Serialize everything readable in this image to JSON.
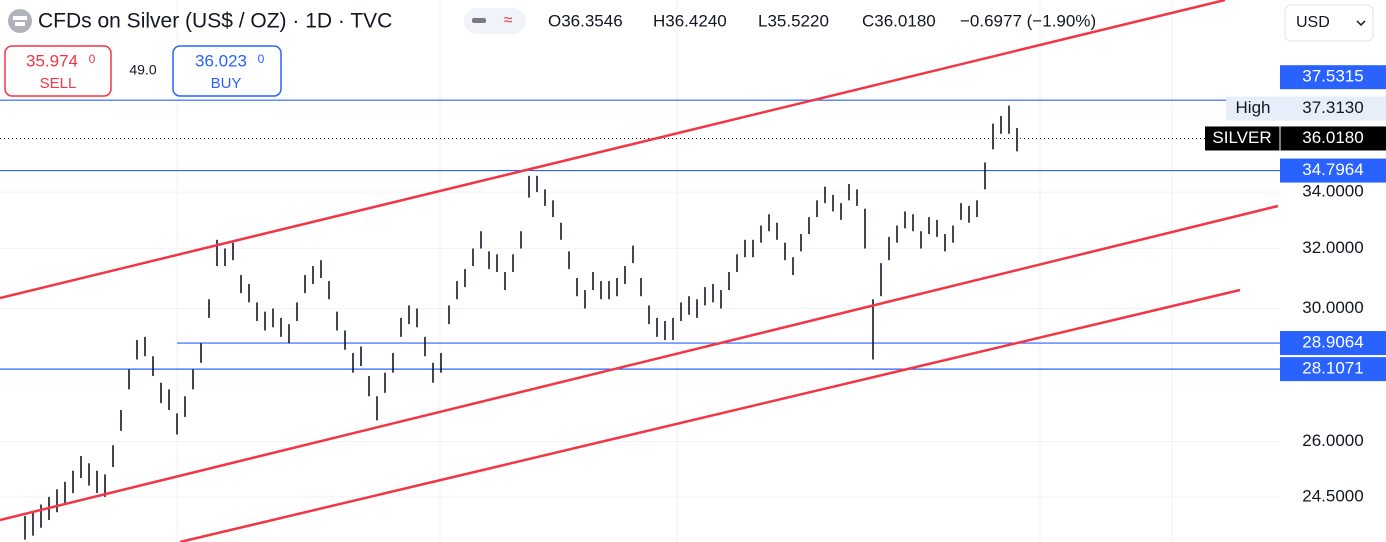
{
  "header": {
    "title": "CFDs on Silver (US$ / OZ) · 1D · TVC",
    "ohlc": [
      "O36.3546",
      "H36.4240",
      "L35.5220",
      "C36.0180",
      "−0.6977 (−1.90%)"
    ],
    "currency": "USD"
  },
  "trade": {
    "sell_price": "35.974",
    "sell_sup": "0",
    "sell": "SELL",
    "spread": "49.0",
    "buy_price": "36.023",
    "buy_sup": "0",
    "buy": "BUY"
  },
  "chart_data": {
    "type": "ohlc",
    "log_scale": true,
    "ylim": [
      23.34,
      41.8
    ],
    "yticks": [
      {
        "value": 24.5,
        "label": "24.5000"
      },
      {
        "value": 26,
        "label": "26.0000"
      },
      {
        "value": 30,
        "label": "30.0000"
      },
      {
        "value": 32,
        "label": "32.0000"
      },
      {
        "value": 34,
        "label": "34.0000"
      }
    ],
    "levels": [
      37.5315,
      34.7964,
      28.9064,
      28.1071
    ],
    "level_color": "#2962ff",
    "high_text": "High",
    "high": {
      "value": 37.313,
      "label": "37.3130"
    },
    "last": {
      "value": 36.018,
      "label": "36.0180"
    },
    "series": [
      {
        "name": "SILVER",
        "color": "#131722",
        "high": [
          24.0,
          24.1,
          24.3,
          24.5,
          24.7,
          24.9,
          25.2,
          25.6,
          25.4,
          25.2,
          25.1,
          25.9,
          26.9,
          28.1,
          29.0,
          29.1,
          28.5,
          27.7,
          27.5,
          26.8,
          27.3,
          28.1,
          28.9,
          30.3,
          32.3,
          32.0,
          32.2,
          31.1,
          30.8,
          30.2,
          29.9,
          30.0,
          29.7,
          29.5,
          30.2,
          31.1,
          31.4,
          31.6,
          30.9,
          29.9,
          29.3,
          28.6,
          28.8,
          27.9,
          27.3,
          28.0,
          28.6,
          29.7,
          30.1,
          30.0,
          29.1,
          28.3,
          28.6,
          30.1,
          30.9,
          31.3,
          32.0,
          32.6,
          31.9,
          31.8,
          31.2,
          31.8,
          32.6,
          34.6,
          34.6,
          34.1,
          33.7,
          32.9,
          31.9,
          31.0,
          30.6,
          31.2,
          30.9,
          30.9,
          31.0,
          31.4,
          32.1,
          31.0,
          30.1,
          29.7,
          29.6,
          29.7,
          30.2,
          30.4,
          30.3,
          30.7,
          30.8,
          30.6,
          31.2,
          31.8,
          32.3,
          32.3,
          32.8,
          33.2,
          32.9,
          32.2,
          31.7,
          32.5,
          33.1,
          33.7,
          34.2,
          33.9,
          33.6,
          34.3,
          34.1,
          33.4,
          30.3,
          31.5,
          32.4,
          32.8,
          33.3,
          33.2,
          32.6,
          33.1,
          33.0,
          32.5,
          32.8,
          33.6,
          33.5,
          33.7,
          35.1,
          36.6,
          36.9,
          37.313,
          36.424
        ],
        "low": [
          23.4,
          23.5,
          23.7,
          23.9,
          24.1,
          24.3,
          24.6,
          25.0,
          24.8,
          24.6,
          24.5,
          25.3,
          26.3,
          27.5,
          28.4,
          28.5,
          27.9,
          27.1,
          26.9,
          26.2,
          26.7,
          27.5,
          28.3,
          29.7,
          31.4,
          31.4,
          31.6,
          30.5,
          30.2,
          29.6,
          29.3,
          29.4,
          29.1,
          28.9,
          29.6,
          30.5,
          30.8,
          31.0,
          30.3,
          29.3,
          28.7,
          28.0,
          28.2,
          27.3,
          26.6,
          27.4,
          28.0,
          29.1,
          29.5,
          29.4,
          28.5,
          27.7,
          28.0,
          29.5,
          30.3,
          30.7,
          31.4,
          32.0,
          31.3,
          31.2,
          30.6,
          31.2,
          32.0,
          33.8,
          34.0,
          33.5,
          33.1,
          32.3,
          31.3,
          30.4,
          30.0,
          30.6,
          30.3,
          30.3,
          30.4,
          30.8,
          31.5,
          30.4,
          29.5,
          29.1,
          29.0,
          29.0,
          29.6,
          29.8,
          29.7,
          30.1,
          30.2,
          30.0,
          30.6,
          31.2,
          31.7,
          31.7,
          32.2,
          32.6,
          32.3,
          31.6,
          31.1,
          31.9,
          32.5,
          33.1,
          33.6,
          33.3,
          33.0,
          33.7,
          33.5,
          32.0,
          28.4,
          30.4,
          31.6,
          32.2,
          32.7,
          32.6,
          32.0,
          32.5,
          32.4,
          31.9,
          32.2,
          33.0,
          32.9,
          33.1,
          34.1,
          35.6,
          36.2,
          36.2,
          35.522
        ]
      }
    ]
  }
}
